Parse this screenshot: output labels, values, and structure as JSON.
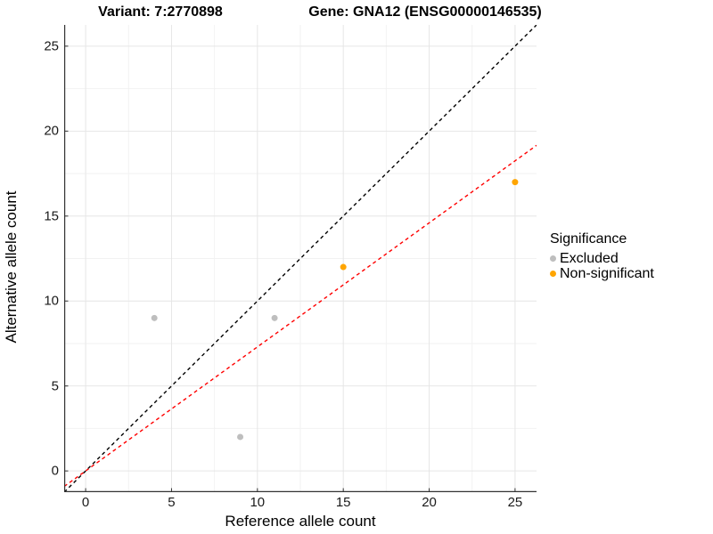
{
  "titles": {
    "variant": "Variant: 7:2770898",
    "gene": "Gene: GNA12 (ENSG00000146535)"
  },
  "chart_data": {
    "type": "scatter",
    "xlabel": "Reference allele count",
    "ylabel": "Alternative allele count",
    "xlim": [
      -1.25,
      26.25
    ],
    "ylim": [
      -1.25,
      26.25
    ],
    "x_ticks": [
      0,
      5,
      10,
      15,
      20,
      25
    ],
    "y_ticks": [
      0,
      5,
      10,
      15,
      20,
      25
    ],
    "minor_gridlines": [
      2.5,
      7.5,
      12.5,
      17.5,
      22.5
    ],
    "grid": true,
    "legend": {
      "title": "Significance",
      "position": "right",
      "items": [
        {
          "label": "Excluded",
          "color": "#BEBEBE"
        },
        {
          "label": "Non-significant",
          "color": "#FFA500"
        }
      ]
    },
    "series": [
      {
        "name": "Excluded",
        "color": "#BEBEBE",
        "points": [
          [
            4,
            9
          ],
          [
            11,
            9
          ],
          [
            9,
            2
          ]
        ]
      },
      {
        "name": "Non-significant",
        "color": "#FFA500",
        "points": [
          [
            15,
            12
          ],
          [
            25,
            17
          ]
        ]
      }
    ],
    "lines": [
      {
        "name": "identity-line",
        "color": "#000000",
        "style": "dashed",
        "slope": 1,
        "intercept": 0
      },
      {
        "name": "fit-line",
        "color": "#FF0000",
        "style": "dashed",
        "slope": 0.73,
        "intercept": 0
      }
    ]
  },
  "style_colors": {
    "axis_line": "#333333",
    "major_grid": "#E6E6E6",
    "minor_grid": "#F2F2F2",
    "tick_mark": "#333333"
  }
}
